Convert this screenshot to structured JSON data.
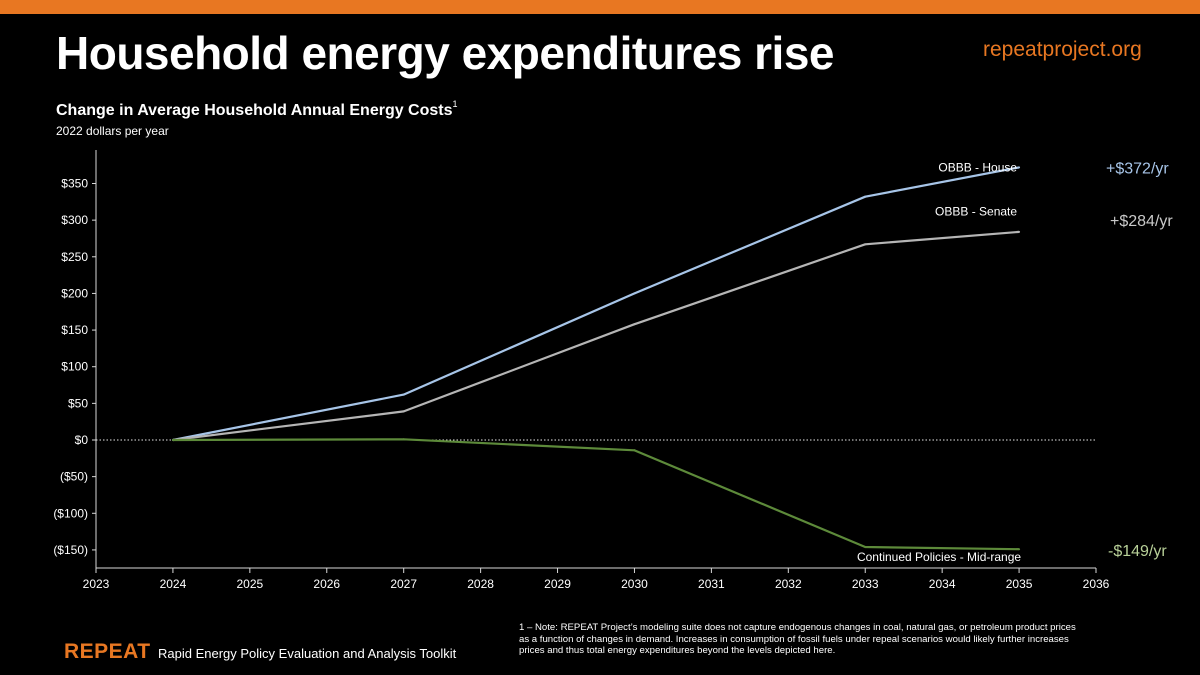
{
  "headline": "Household energy expenditures rise",
  "website": "repeatproject.org",
  "colors": {
    "accent_orange": "#e87722",
    "house": "#a7c5e8",
    "senate": "#b5b5b5",
    "continued": "#5d8a3a",
    "continued_value": "#b8d098"
  },
  "chart_data": {
    "type": "line",
    "title": "Change in Average Household Annual Energy Costs",
    "title_footnote_marker": "1",
    "subtitle": "2022 dollars per year",
    "xlabel": "",
    "ylabel": "",
    "x_ticks": [
      "2023",
      "2024",
      "2025",
      "2026",
      "2027",
      "2028",
      "2029",
      "2030",
      "2031",
      "2032",
      "2033",
      "2034",
      "2035",
      "2036"
    ],
    "y_ticks": [
      "$350",
      "$300",
      "$250",
      "$200",
      "$150",
      "$100",
      "$50",
      "$0",
      "($50)",
      "($100)",
      "($150)"
    ],
    "xlim": [
      2023,
      2036
    ],
    "ylim": [
      -165,
      400
    ],
    "zero_line": "dotted",
    "series": [
      {
        "name": "OBBB - House",
        "end_value_label": "+$372/yr",
        "color": "#a7c5e8",
        "x": [
          2024,
          2027,
          2030,
          2033,
          2035
        ],
        "y": [
          0,
          62,
          200,
          332,
          372
        ]
      },
      {
        "name": "OBBB - Senate",
        "end_value_label": "+$284/yr",
        "color": "#b5b5b5",
        "x": [
          2024,
          2027,
          2030,
          2033,
          2035
        ],
        "y": [
          0,
          39,
          158,
          267,
          284
        ]
      },
      {
        "name": "Continued Policies - Mid-range",
        "end_value_label": "-$149/yr",
        "color": "#5d8a3a",
        "x": [
          2024,
          2027,
          2030,
          2033,
          2035
        ],
        "y": [
          0,
          1,
          -14,
          -146,
          -149
        ]
      }
    ]
  },
  "footnote": "1 – Note: REPEAT Project’s modeling suite does not capture endogenous changes in coal, natural gas, or petroleum product prices as a function of changes in demand. Increases in consumption of fossil fuels under repeal scenarios would likely further increases prices and thus total energy expenditures beyond the levels depicted here.",
  "brand": {
    "name": "REPEAT",
    "full_name": "Rapid Energy Policy Evaluation and Analysis Toolkit"
  }
}
